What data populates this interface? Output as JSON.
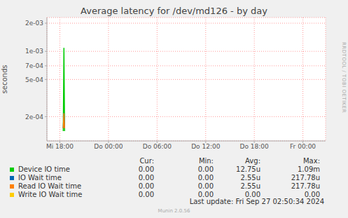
{
  "chart_data": {
    "type": "line",
    "title": "Average latency for /dev/md126 - by day",
    "ylabel": "seconds",
    "log": "y",
    "grid": true,
    "x": [
      18.25,
      18.42,
      18.5,
      18.58,
      18.75
    ],
    "xlim": [
      16.4,
      50.8
    ],
    "xticks": [
      {
        "value": 18,
        "label": "Mi 18:00"
      },
      {
        "value": 24,
        "label": "Do 00:00"
      },
      {
        "value": 30,
        "label": "Do 06:00"
      },
      {
        "value": 36,
        "label": "Do 12:00"
      },
      {
        "value": 42,
        "label": "Do 18:00"
      },
      {
        "value": 48,
        "label": "Fr 00:00"
      }
    ],
    "ylim": [
      0.00011,
      0.0023
    ],
    "yticks": [
      {
        "value": 0.0002,
        "label": "2e-04"
      },
      {
        "value": 0.0005,
        "label": "5e-04"
      },
      {
        "value": 0.0007,
        "label": "7e-04"
      },
      {
        "value": 0.001,
        "label": "1e-03"
      },
      {
        "value": 0.002,
        "label": "2e-03"
      }
    ],
    "stats_columns": [
      "Cur:",
      "Min:",
      "Avg:",
      "Max:"
    ],
    "series": [
      {
        "name": "Device IO time",
        "color": "#00cc00",
        "values": [
          null,
          0.00014,
          0.00109,
          0.00014,
          null
        ],
        "stats": [
          "0.00",
          "0.00",
          "12.75u",
          "1.09m"
        ]
      },
      {
        "name": "IO Wait time",
        "color": "#0066b3",
        "values": [
          null,
          0.00015,
          0.00021778,
          0.00015,
          null
        ],
        "stats": [
          "0.00",
          "0.00",
          "2.55u",
          "217.78u"
        ]
      },
      {
        "name": "Read IO Wait time",
        "color": "#ff8000",
        "values": [
          null,
          0.00015,
          0.00021778,
          0.00015,
          null
        ],
        "stats": [
          "0.00",
          "0.00",
          "2.55u",
          "217.78u"
        ]
      },
      {
        "name": "Write IO Wait time",
        "color": "#ffcc00",
        "values": [
          null,
          null,
          null,
          null,
          null
        ],
        "stats": [
          "0.00",
          "0.00",
          "0.00",
          "0.00"
        ]
      }
    ],
    "side_text": "RRDTOOL / TOBI OETIKER",
    "footer": "Last update: Fri Sep 27 02:50:34 2024",
    "credit": "Munin 2.0.56"
  }
}
